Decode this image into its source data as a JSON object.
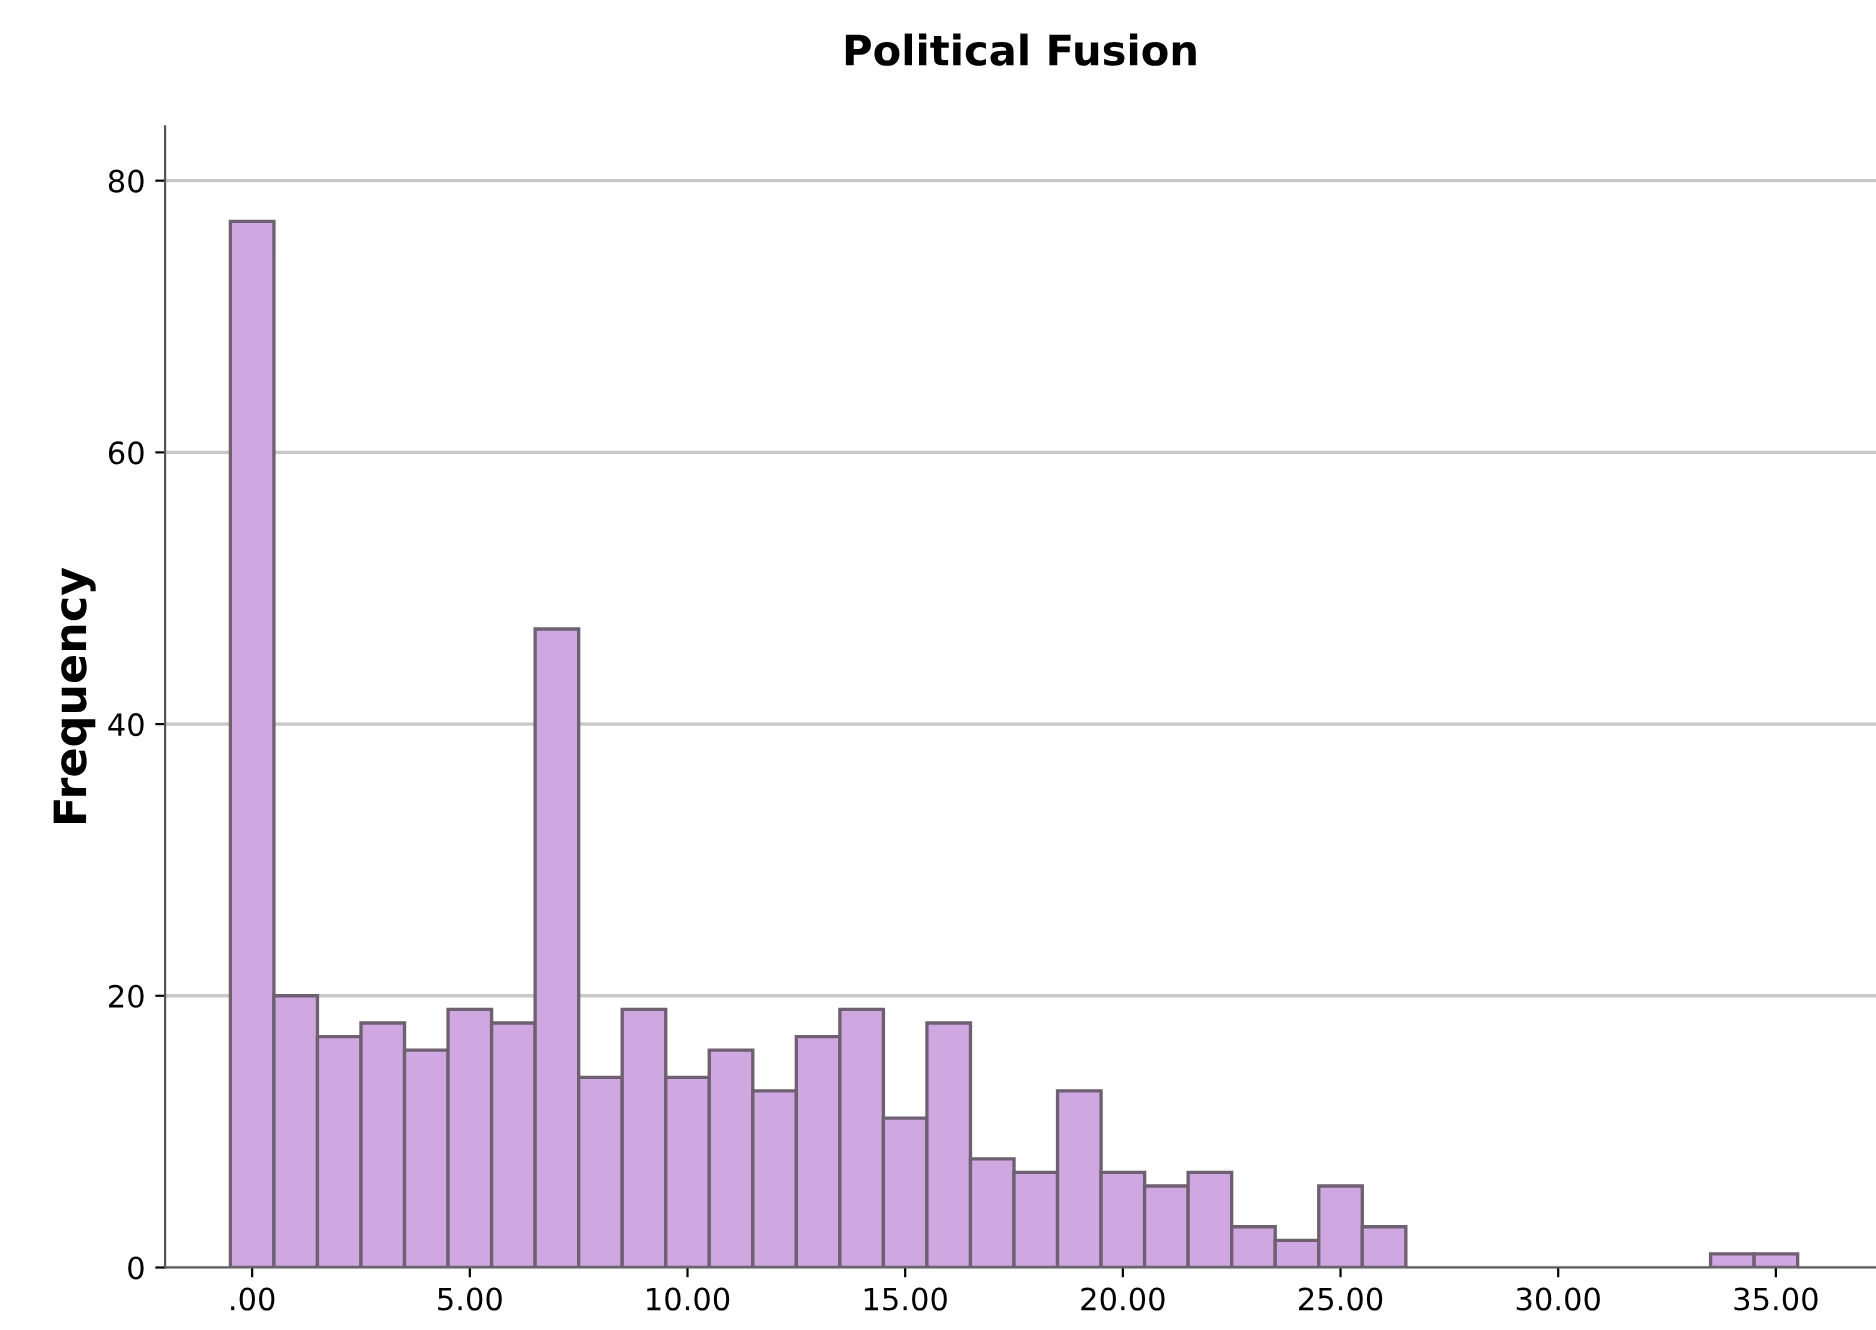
{
  "chart_data": {
    "type": "histogram",
    "title": "Political Fusion",
    "ylabel": "Frequency",
    "bins": [
      -0.5,
      0.5,
      1.5,
      2.5,
      3.5,
      4.5,
      5.5,
      6.5,
      7.5,
      8.5,
      9.5,
      10.5,
      11.5,
      12.5,
      13.5,
      14.5,
      15.5,
      16.5,
      17.5,
      18.5,
      19.5,
      20.5,
      21.5,
      22.5,
      23.5,
      24.5,
      25.5,
      26.5,
      27.5,
      28.5,
      29.5,
      30.5,
      31.5,
      32.5,
      33.5,
      34.5,
      35.5
    ],
    "values": [
      77,
      20,
      17,
      18,
      16,
      19,
      18,
      47,
      14,
      19,
      14,
      16,
      13,
      17,
      19,
      11,
      18,
      8,
      7,
      13,
      7,
      6,
      7,
      3,
      2,
      6,
      3,
      0,
      0,
      0,
      0,
      0,
      0,
      0,
      1,
      1
    ],
    "color": "#cfa8e2",
    "xlim": [
      -2,
      37.3
    ],
    "ylim": [
      0,
      84
    ],
    "xticks": [
      {
        "value": 0,
        "label": ".00"
      },
      {
        "value": 5,
        "label": "5.00"
      },
      {
        "value": 10,
        "label": "10.00"
      },
      {
        "value": 15,
        "label": "15.00"
      },
      {
        "value": 20,
        "label": "20.00"
      },
      {
        "value": 25,
        "label": "25.00"
      },
      {
        "value": 30,
        "label": "30.00"
      },
      {
        "value": 35,
        "label": "35.00"
      }
    ],
    "yticks": [
      0,
      20,
      40,
      60,
      80
    ],
    "grid": "y"
  }
}
